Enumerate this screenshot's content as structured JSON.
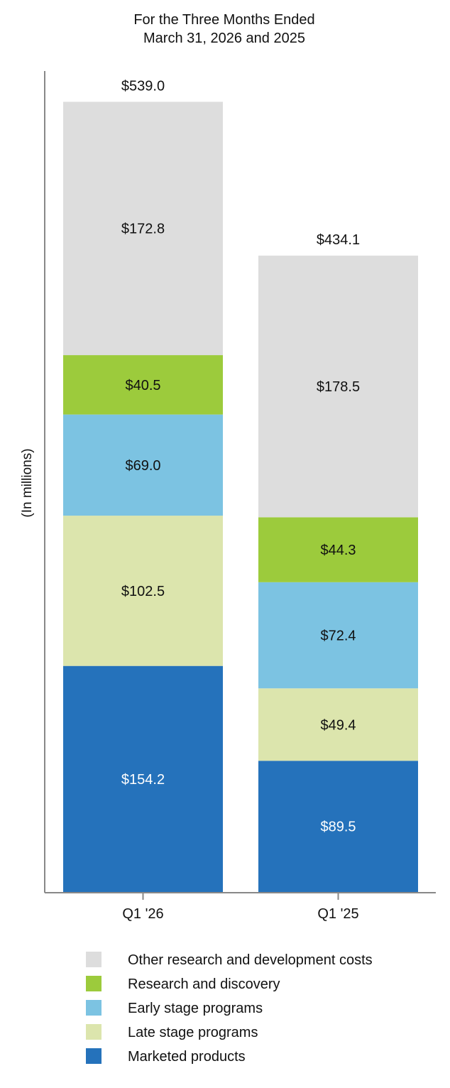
{
  "chart_data": {
    "type": "bar",
    "stacked": true,
    "title": [
      "For the Three Months Ended",
      "March 31, 2026 and 2025"
    ],
    "xlabel": "",
    "ylabel": "(In millions)",
    "ylim": [
      0,
      560
    ],
    "grid": false,
    "legend_placement": "bottom",
    "categories": [
      "Q1 '26",
      "Q1 '25"
    ],
    "totals": [
      "$539.0",
      "$434.1"
    ],
    "series": [
      {
        "name": "Marketed products",
        "color": "#2572bb",
        "label_color": "#ffffff",
        "values": [
          154.2,
          89.5
        ],
        "labels": [
          "$154.2",
          "$89.5"
        ]
      },
      {
        "name": "Late stage programs",
        "color": "#dce5ad",
        "label_color": "#111111",
        "values": [
          102.5,
          49.4
        ],
        "labels": [
          "$102.5",
          "$49.4"
        ]
      },
      {
        "name": "Early stage programs",
        "color": "#7cc3e2",
        "label_color": "#111111",
        "values": [
          69.0,
          72.4
        ],
        "labels": [
          "$69.0",
          "$72.4"
        ]
      },
      {
        "name": "Research and discovery",
        "color": "#9ccb3c",
        "label_color": "#111111",
        "values": [
          40.5,
          44.3
        ],
        "labels": [
          "$40.5",
          "$44.3"
        ]
      },
      {
        "name": "Other research and development costs",
        "color": "#dddddd",
        "label_color": "#111111",
        "values": [
          172.8,
          178.5
        ],
        "labels": [
          "$172.8",
          "$178.5"
        ]
      }
    ],
    "legend_order": [
      "Other research and development costs",
      "Research and discovery",
      "Early stage programs",
      "Late stage programs",
      "Marketed products"
    ]
  }
}
